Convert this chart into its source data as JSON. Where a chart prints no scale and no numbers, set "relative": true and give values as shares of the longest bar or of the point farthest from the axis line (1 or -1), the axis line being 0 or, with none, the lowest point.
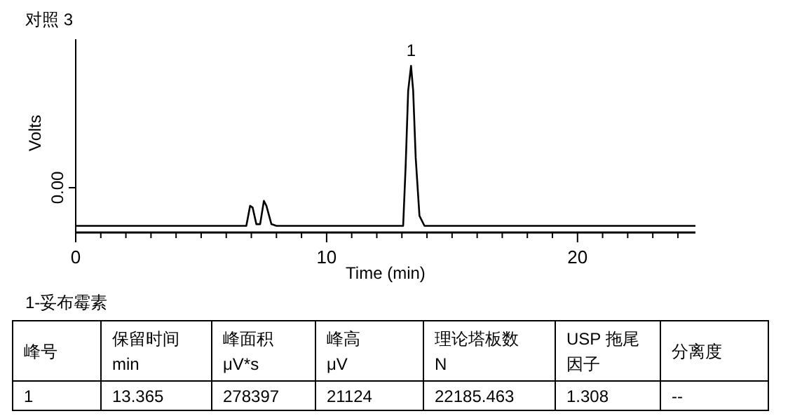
{
  "chart_data": {
    "type": "line",
    "title": "对照 3",
    "xlabel": "Time (min)",
    "ylabel": "Volts",
    "relative": true,
    "x": [
      0,
      6.8,
      6.95,
      7.05,
      7.2,
      7.35,
      7.5,
      7.6,
      7.8,
      8,
      13.05,
      13.15,
      13.25,
      13.365,
      13.45,
      13.55,
      13.7,
      13.9,
      24.7
    ],
    "values": [
      0.04,
      0.04,
      0.16,
      0.15,
      0.05,
      0.05,
      0.19,
      0.16,
      0.05,
      0.04,
      0.04,
      0.4,
      0.85,
      1,
      0.85,
      0.45,
      0.1,
      0.04,
      0.04
    ],
    "color": "#000000",
    "xlim": [
      0,
      24.7
    ],
    "xticks": [
      0,
      {
        "value": 1,
        "label": null
      },
      {
        "value": 2,
        "label": null
      },
      {
        "value": 3,
        "label": null
      },
      {
        "value": 4,
        "label": null
      },
      {
        "value": 5,
        "label": null
      },
      {
        "value": 6,
        "label": null
      },
      {
        "value": 7,
        "label": null
      },
      {
        "value": 8,
        "label": null
      },
      {
        "value": 9,
        "label": null
      },
      10,
      {
        "value": 11,
        "label": null
      },
      {
        "value": 12,
        "label": null
      },
      {
        "value": 13,
        "label": null
      },
      {
        "value": 14,
        "label": null
      },
      {
        "value": 15,
        "label": null
      },
      {
        "value": 16,
        "label": null
      },
      {
        "value": 17,
        "label": null
      },
      {
        "value": 18,
        "label": null
      },
      {
        "value": 19,
        "label": null
      },
      20,
      {
        "value": 21,
        "label": null
      },
      {
        "value": 22,
        "label": null
      },
      {
        "value": 23,
        "label": null
      },
      {
        "value": 24,
        "label": null
      }
    ],
    "annotations": [
      {
        "text": "1",
        "x": 13.365,
        "y": 1
      },
      "0.00",
      "1-妥布霉素",
      "峰号",
      "保留时间\nmin",
      "峰面积\nμV*s",
      "峰高\nμV",
      "理论塔板数\nN",
      "USP  拖尾",
      "因子",
      "分离度",
      "1",
      "13.365",
      "278397",
      "21124",
      "22185.463",
      "1.308",
      "--"
    ]
  }
}
